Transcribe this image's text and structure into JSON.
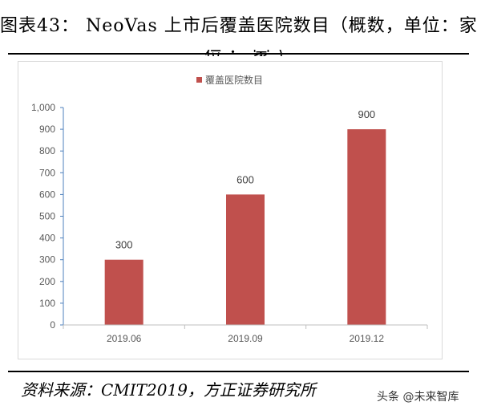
{
  "figure": {
    "title": "图表43： NeoVas 上市后覆盖医院数目（概数，单位：家）",
    "title_overflow": "位：家）",
    "source": "资料来源：CMIT2019，方正证券研究所",
    "watermark": "头条 @未来智库"
  },
  "chart_data": {
    "type": "bar",
    "title": "",
    "xlabel": "",
    "ylabel": "",
    "categories": [
      "2019.06",
      "2019.09",
      "2019.12"
    ],
    "series": [
      {
        "name": "覆盖医院数目",
        "values": [
          300,
          600,
          900
        ],
        "color": "#c0504d"
      }
    ],
    "data_labels": [
      "300",
      "600",
      "900"
    ],
    "ylim": [
      0,
      1000
    ],
    "yticks": [
      0,
      100,
      200,
      300,
      400,
      500,
      600,
      700,
      800,
      900,
      1000
    ],
    "ytick_labels": [
      "0",
      "100",
      "200",
      "300",
      "400",
      "500",
      "600",
      "700",
      "800",
      "900",
      "1,000"
    ],
    "grid": false,
    "legend": "top-center"
  }
}
